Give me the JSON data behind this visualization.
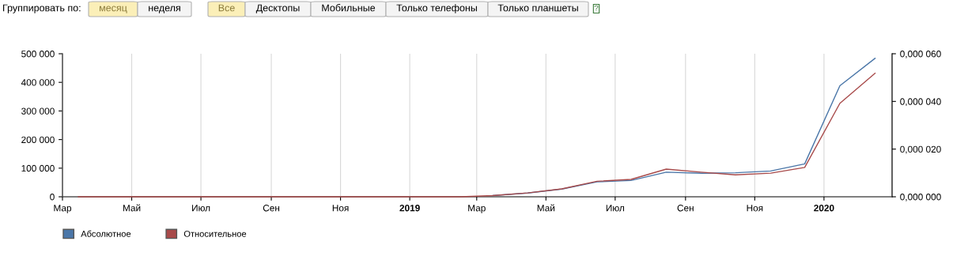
{
  "chart_data": {
    "type": "line",
    "annotations": [
      "Группировать по:",
      "месяц",
      "неделя",
      "Все",
      "Десктопы",
      "Мобильные",
      "Только телефоны",
      "Только планшеты",
      "?"
    ],
    "x": [
      "2018-03-15",
      "2018-04-15",
      "2018-05-15",
      "2018-06-15",
      "2018-07-15",
      "2018-08-15",
      "2018-09-15",
      "2018-10-15",
      "2018-11-15",
      "2018-12-15",
      "2019-01-15",
      "2019-02-15",
      "2019-03-15",
      "2019-04-15",
      "2019-05-15",
      "2019-06-15",
      "2019-07-15",
      "2019-08-15",
      "2019-09-15",
      "2019-10-15",
      "2019-11-15",
      "2019-12-15",
      "2020-01-15",
      "2020-02-15"
    ],
    "series": [
      {
        "name": "Абсолютное",
        "color": "#4a76a8",
        "values": [
          null,
          null,
          null,
          null,
          null,
          null,
          null,
          null,
          null,
          null,
          null,
          null,
          4000,
          13000,
          27000,
          52000,
          57000,
          86000,
          82000,
          84000,
          90000,
          115000,
          388000,
          484000
        ]
      },
      {
        "name": "Относительное",
        "color": "#a84a4a",
        "axis": "y2",
        "values": [
          0,
          0,
          0,
          0,
          0,
          0,
          0,
          0,
          0,
          0,
          0,
          0,
          5e-07,
          1.6e-06,
          3.3e-06,
          6.5e-06,
          7.3e-06,
          1.16e-05,
          1.03e-05,
          9.2e-06,
          9.9e-06,
          1.23e-05,
          3.92e-05,
          5.18e-05
        ]
      }
    ],
    "xlim": [
      "2018-03-01",
      "2020-03-01"
    ],
    "xticks": [
      {
        "value": "2018-03-01",
        "label": "Мар"
      },
      {
        "value": "2018-05-01",
        "label": "Май"
      },
      {
        "value": "2018-07-01",
        "label": "Июл"
      },
      {
        "value": "2018-09-01",
        "label": "Сен"
      },
      {
        "value": "2018-11-01",
        "label": "Ноя"
      },
      {
        "value": "2019-01-01",
        "label": "2019"
      },
      {
        "value": "2019-03-01",
        "label": "Мар"
      },
      {
        "value": "2019-05-01",
        "label": "Май"
      },
      {
        "value": "2019-07-01",
        "label": "Июл"
      },
      {
        "value": "2019-09-01",
        "label": "Сен"
      },
      {
        "value": "2019-11-01",
        "label": "Ноя"
      },
      {
        "value": "2020-01-01",
        "label": "2020"
      }
    ],
    "ylim": [
      0,
      500000
    ],
    "yticks": [
      {
        "value": 0,
        "label": "0"
      },
      {
        "value": 100000,
        "label": "100 000"
      },
      {
        "value": 200000,
        "label": "200 000"
      },
      {
        "value": 300000,
        "label": "300 000"
      },
      {
        "value": 400000,
        "label": "400 000"
      },
      {
        "value": 500000,
        "label": "500 000"
      }
    ],
    "y2lim": [
      0,
      6e-05
    ],
    "y2ticks": [
      {
        "value": 0,
        "label": "0,000 000"
      },
      {
        "value": 2e-05,
        "label": "0,000 020"
      },
      {
        "value": 4e-05,
        "label": "0,000 040"
      },
      {
        "value": 6e-05,
        "label": "0,000 060"
      }
    ],
    "grid": "x",
    "legend": "bottom left",
    "marker": "none",
    "line_style": "solid"
  }
}
